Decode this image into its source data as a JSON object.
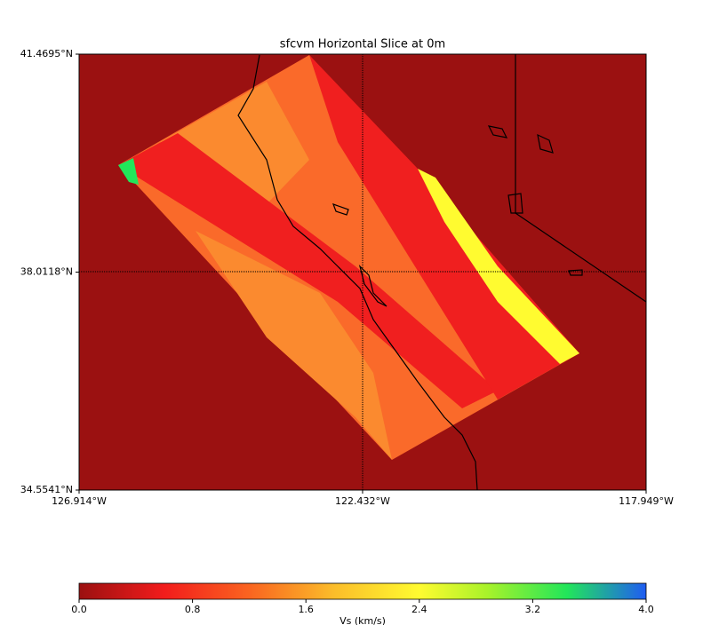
{
  "map": {
    "title": "sfcvm Horizontal Slice at 0m",
    "latlim": [
      34.5541,
      41.4695
    ],
    "lonlim": [
      -126.914,
      -117.949
    ],
    "lat_ticks": [
      {
        "value": 41.4695,
        "label": "41.4695°N"
      },
      {
        "value": 38.0118,
        "label": "38.0118°N"
      },
      {
        "value": 34.5541,
        "label": "34.5541°N"
      }
    ],
    "lon_ticks": [
      {
        "value": -126.914,
        "label": "126.914°W"
      },
      {
        "value": -122.432,
        "label": "122.432°W"
      },
      {
        "value": -117.949,
        "label": "117.949°W"
      }
    ]
  },
  "colorbar": {
    "label": "Vs (km/s)",
    "clim": [
      0,
      4
    ],
    "ticks": [
      {
        "value": 0,
        "label": "0.0"
      },
      {
        "value": 0.8,
        "label": "0.8"
      },
      {
        "value": 1.6,
        "label": "1.6"
      },
      {
        "value": 2.4,
        "label": "2.4"
      },
      {
        "value": 3.2,
        "label": "3.2"
      },
      {
        "value": 4,
        "label": "4.0"
      }
    ]
  }
}
